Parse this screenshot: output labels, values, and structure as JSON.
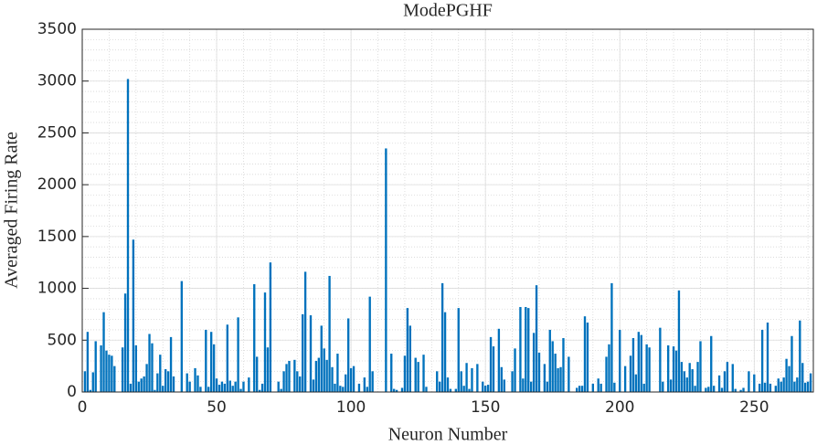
{
  "chart_data": {
    "type": "bar",
    "title": "ModePGHF",
    "xlabel": "Neuron Number",
    "ylabel": "Averaged Firing Rate",
    "color": "#0072bd",
    "grid": true,
    "minor_grid": true,
    "xlim": [
      0,
      272
    ],
    "xticks": [
      0,
      50,
      100,
      150,
      200,
      250
    ],
    "ylim": [
      0,
      3500
    ],
    "yticks": [
      0,
      500,
      1000,
      1500,
      2000,
      2500,
      3000,
      3500
    ],
    "x": [
      1,
      2,
      3,
      4,
      5,
      6,
      7,
      8,
      9,
      10,
      11,
      12,
      13,
      14,
      15,
      16,
      17,
      18,
      19,
      20,
      21,
      22,
      23,
      24,
      25,
      26,
      27,
      28,
      29,
      30,
      31,
      32,
      33,
      34,
      35,
      36,
      37,
      38,
      39,
      40,
      41,
      42,
      43,
      44,
      45,
      46,
      47,
      48,
      49,
      50,
      51,
      52,
      53,
      54,
      55,
      56,
      57,
      58,
      59,
      60,
      61,
      62,
      63,
      64,
      65,
      66,
      67,
      68,
      69,
      70,
      71,
      72,
      73,
      74,
      75,
      76,
      77,
      78,
      79,
      80,
      81,
      82,
      83,
      84,
      85,
      86,
      87,
      88,
      89,
      90,
      91,
      92,
      93,
      94,
      95,
      96,
      97,
      98,
      99,
      100,
      101,
      102,
      103,
      104,
      105,
      106,
      107,
      108,
      109,
      110,
      111,
      112,
      113,
      114,
      115,
      116,
      117,
      118,
      119,
      120,
      121,
      122,
      123,
      124,
      125,
      126,
      127,
      128,
      129,
      130,
      131,
      132,
      133,
      134,
      135,
      136,
      137,
      138,
      139,
      140,
      141,
      142,
      143,
      144,
      145,
      146,
      147,
      148,
      149,
      150,
      151,
      152,
      153,
      154,
      155,
      156,
      157,
      158,
      159,
      160,
      161,
      162,
      163,
      164,
      165,
      166,
      167,
      168,
      169,
      170,
      171,
      172,
      173,
      174,
      175,
      176,
      177,
      178,
      179,
      180,
      181,
      182,
      183,
      184,
      185,
      186,
      187,
      188,
      189,
      190,
      191,
      192,
      193,
      194,
      195,
      196,
      197,
      198,
      199,
      200,
      201,
      202,
      203,
      204,
      205,
      206,
      207,
      208,
      209,
      210,
      211,
      212,
      213,
      214,
      215,
      216,
      217,
      218,
      219,
      220,
      221,
      222,
      223,
      224,
      225,
      226,
      227,
      228,
      229,
      230,
      231,
      232,
      233,
      234,
      235,
      236,
      237,
      238,
      239,
      240,
      241,
      242,
      243,
      244,
      245,
      246,
      247,
      248,
      249,
      250,
      251,
      252,
      253,
      254,
      255,
      256,
      257,
      258,
      259,
      260,
      261,
      262,
      263,
      264,
      265,
      266,
      267,
      268,
      269,
      270,
      271
    ],
    "values": [
      200,
      580,
      20,
      190,
      490,
      0,
      450,
      770,
      400,
      360,
      350,
      250,
      0,
      0,
      430,
      950,
      3020,
      80,
      1470,
      450,
      100,
      130,
      150,
      270,
      560,
      470,
      20,
      180,
      360,
      60,
      220,
      200,
      530,
      150,
      0,
      0,
      1070,
      0,
      180,
      100,
      0,
      230,
      160,
      50,
      0,
      600,
      50,
      580,
      460,
      130,
      70,
      100,
      80,
      650,
      110,
      60,
      100,
      720,
      30,
      100,
      0,
      140,
      0,
      1040,
      340,
      20,
      80,
      960,
      430,
      1250,
      0,
      0,
      100,
      30,
      200,
      270,
      300,
      0,
      310,
      200,
      150,
      750,
      1160,
      0,
      740,
      120,
      300,
      330,
      640,
      420,
      310,
      1120,
      240,
      80,
      370,
      60,
      50,
      170,
      710,
      230,
      250,
      0,
      80,
      0,
      140,
      50,
      920,
      200,
      0,
      0,
      0,
      0,
      2350,
      0,
      370,
      30,
      20,
      0,
      40,
      350,
      810,
      640,
      0,
      330,
      290,
      0,
      360,
      50,
      0,
      0,
      0,
      200,
      100,
      1050,
      770,
      140,
      30,
      0,
      30,
      810,
      200,
      60,
      280,
      30,
      230,
      0,
      270,
      0,
      100,
      60,
      70,
      530,
      440,
      0,
      610,
      240,
      120,
      0,
      0,
      200,
      420,
      0,
      820,
      130,
      820,
      810,
      100,
      570,
      1030,
      380,
      0,
      270,
      100,
      600,
      490,
      370,
      230,
      240,
      520,
      0,
      340,
      0,
      0,
      40,
      60,
      60,
      730,
      670,
      0,
      80,
      0,
      130,
      80,
      0,
      340,
      460,
      1050,
      90,
      0,
      600,
      0,
      250,
      0,
      350,
      520,
      170,
      580,
      550,
      80,
      460,
      430,
      0,
      0,
      0,
      620,
      100,
      0,
      450,
      120,
      440,
      400,
      980,
      290,
      200,
      140,
      280,
      220,
      60,
      290,
      490,
      0,
      40,
      50,
      540,
      60,
      0,
      160,
      40,
      200,
      290,
      0,
      270,
      30,
      0,
      20,
      40,
      0,
      200,
      0,
      170,
      0,
      80,
      600,
      90,
      670,
      80,
      0,
      60,
      130,
      100,
      140,
      320,
      250,
      540,
      100,
      140,
      690,
      280,
      90,
      100,
      180
    ]
  }
}
